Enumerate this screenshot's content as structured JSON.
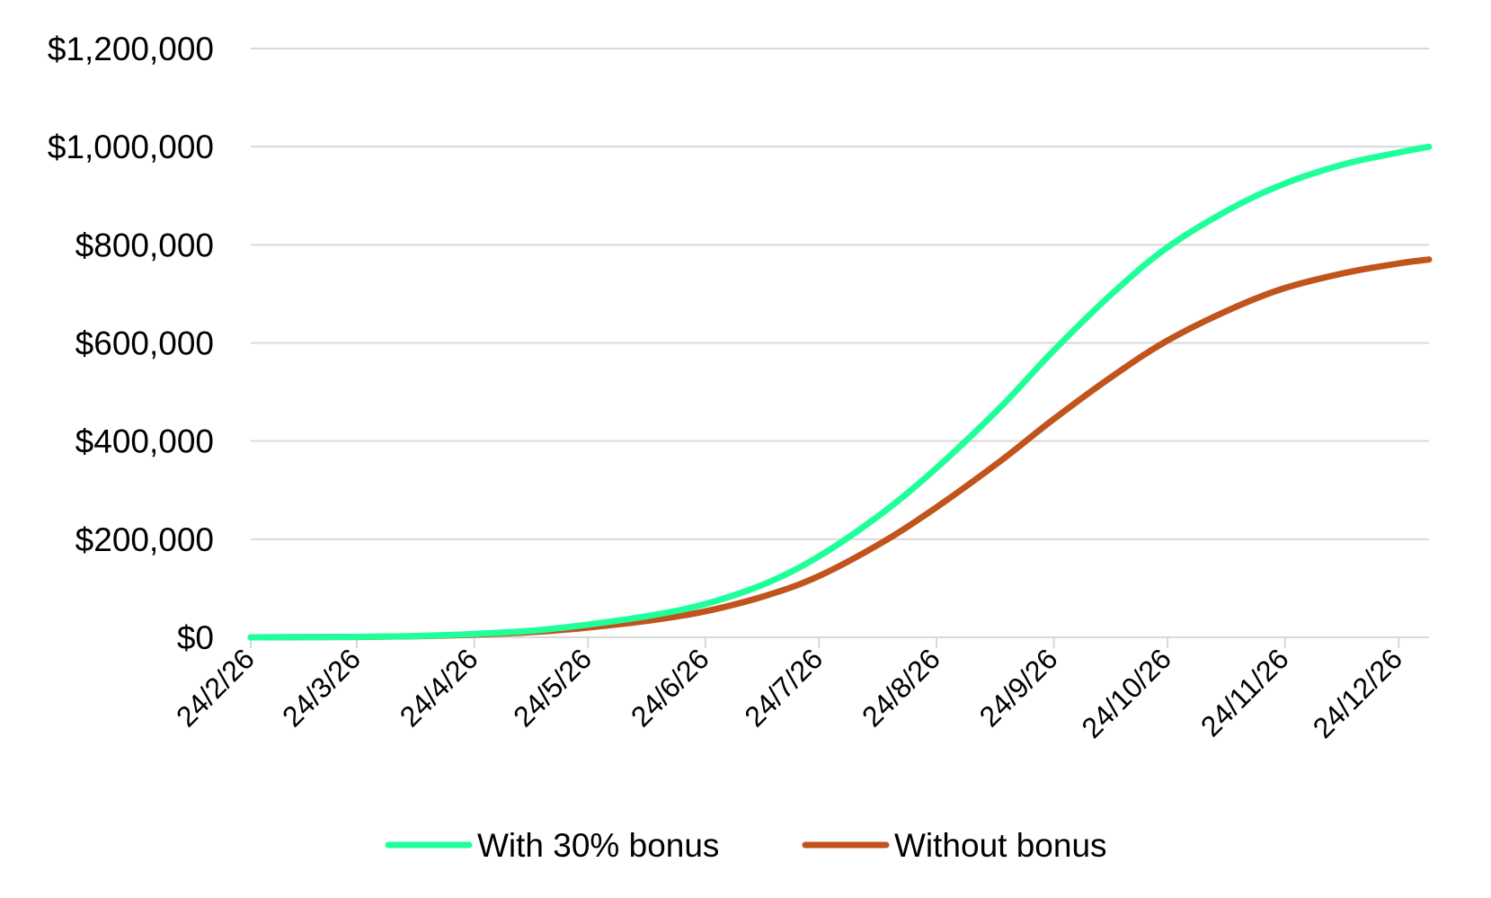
{
  "chart_data": {
    "type": "line",
    "title": "",
    "xlabel": "",
    "ylabel": "",
    "x_tick_labels": [
      "24/2/26",
      "24/3/26",
      "24/4/26",
      "24/5/26",
      "24/6/26",
      "24/7/26",
      "24/8/26",
      "24/9/26",
      "24/10/26",
      "24/11/26",
      "24/12/26"
    ],
    "y_tick_labels": [
      "$0",
      "$200,000",
      "$400,000",
      "$600,000",
      "$800,000",
      "$1,000,000",
      "$1,200,000"
    ],
    "y_ticks": [
      0,
      200000,
      400000,
      600000,
      800000,
      1000000,
      1200000
    ],
    "ylim": [
      0,
      1200000
    ],
    "xlim": [
      "2026-02-24",
      "2027-01-01"
    ],
    "grid": true,
    "legend_position": "bottom",
    "series": [
      {
        "name": "With 30% bonus",
        "color": "#1fff9a",
        "points": [
          [
            "2026-02-24",
            0
          ],
          [
            "2026-03-24",
            1000
          ],
          [
            "2026-04-10",
            3000
          ],
          [
            "2026-04-24",
            7000
          ],
          [
            "2026-05-10",
            14000
          ],
          [
            "2026-05-24",
            26000
          ],
          [
            "2026-06-10",
            45000
          ],
          [
            "2026-06-24",
            68000
          ],
          [
            "2026-07-10",
            110000
          ],
          [
            "2026-07-24",
            165000
          ],
          [
            "2026-08-10",
            255000
          ],
          [
            "2026-08-24",
            345000
          ],
          [
            "2026-09-10",
            470000
          ],
          [
            "2026-09-24",
            585000
          ],
          [
            "2026-10-10",
            705000
          ],
          [
            "2026-10-24",
            795000
          ],
          [
            "2026-11-10",
            875000
          ],
          [
            "2026-11-24",
            925000
          ],
          [
            "2026-12-10",
            965000
          ],
          [
            "2026-12-24",
            988000
          ],
          [
            "2027-01-01",
            1000000
          ]
        ]
      },
      {
        "name": "Without bonus",
        "color": "#c0541c",
        "points": [
          [
            "2026-02-24",
            0
          ],
          [
            "2026-03-24",
            800
          ],
          [
            "2026-04-10",
            2500
          ],
          [
            "2026-04-24",
            5500
          ],
          [
            "2026-05-10",
            11000
          ],
          [
            "2026-05-24",
            20000
          ],
          [
            "2026-06-10",
            35000
          ],
          [
            "2026-06-24",
            53000
          ],
          [
            "2026-07-10",
            85000
          ],
          [
            "2026-07-24",
            125000
          ],
          [
            "2026-08-10",
            195000
          ],
          [
            "2026-08-24",
            265000
          ],
          [
            "2026-09-10",
            360000
          ],
          [
            "2026-09-24",
            445000
          ],
          [
            "2026-10-10",
            535000
          ],
          [
            "2026-10-24",
            605000
          ],
          [
            "2026-11-10",
            670000
          ],
          [
            "2026-11-24",
            712000
          ],
          [
            "2026-12-10",
            743000
          ],
          [
            "2026-12-24",
            762000
          ],
          [
            "2027-01-01",
            770000
          ]
        ]
      }
    ]
  }
}
